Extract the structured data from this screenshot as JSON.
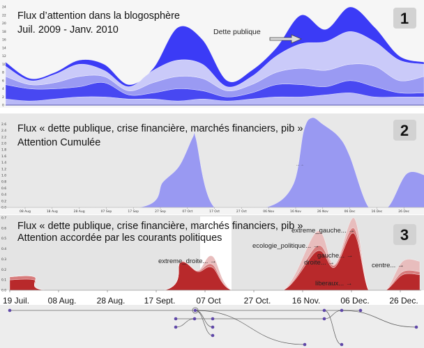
{
  "chart_data": [
    {
      "type": "area",
      "variant": "streamgraph",
      "title": "Flux d’attention dans la blogosphère",
      "subtitle": "Juil. 2009 - Janv. 2010",
      "badge": "1",
      "annotation": "Dette publique",
      "ylim": [
        0,
        24
      ],
      "yticks": [
        "0",
        "2",
        "4",
        "6",
        "8",
        "10",
        "12",
        "14",
        "16",
        "18",
        "20",
        "22",
        "24"
      ],
      "grid": false,
      "colors": [
        "#b9b9f7",
        "#4848f2",
        "#9a9af3",
        "#cacaf9",
        "#3b3bf6"
      ],
      "series": [
        {
          "values": [
            1.5,
            1,
            1.5,
            2,
            2,
            1.5,
            1.5,
            1,
            1.5,
            1,
            1.5,
            2,
            2,
            2.5,
            3,
            2,
            2,
            2
          ]
        },
        {
          "values": [
            3.5,
            3,
            2.5,
            2.5,
            3.5,
            1,
            1.5,
            3,
            2,
            1,
            1.5,
            3,
            3,
            2,
            3,
            2.5,
            1,
            1
          ]
        },
        {
          "values": [
            2,
            1,
            1.5,
            2.5,
            1.5,
            1,
            2.5,
            3,
            3,
            1.5,
            2,
            3,
            4,
            4,
            4,
            5,
            3,
            4
          ]
        },
        {
          "values": [
            2.5,
            1,
            2,
            3,
            1.5,
            1,
            3,
            4,
            3.5,
            1,
            2,
            4,
            6,
            7,
            8,
            6,
            5,
            3
          ]
        },
        {
          "values": [
            1,
            0.5,
            0.5,
            1,
            1.5,
            0.5,
            0.5,
            8,
            6,
            1.5,
            1.5,
            2,
            7,
            3,
            6,
            3.5,
            1,
            0.5
          ]
        }
      ]
    },
    {
      "type": "area",
      "title": "Flux  « dette publique, crise financière, marchés financiers, pib »",
      "subtitle": "Attention Cumulée",
      "badge": "2",
      "annotation": "... →",
      "ylim": [
        0,
        2.8
      ],
      "yticks": [
        "0.0",
        "0.2",
        "0.4",
        "0.6",
        "0.8",
        "1.0",
        "1.2",
        "1.4",
        "1.6",
        "1.8",
        "2.0",
        "2.2",
        "2.4",
        "2.6"
      ],
      "xtick_labels": [
        "08 Aug",
        "18 Aug",
        "28 Aug",
        "07 Sep",
        "17 Sep",
        "27 Sep",
        "07 Oct",
        "17 Oct",
        "27 Oct",
        "06 Nov",
        "16 Nov",
        "26 Nov",
        "06 Dec",
        "16 Dec",
        "26 Dec"
      ],
      "color": "#9999f2",
      "x": [
        "2009-07-29",
        "2009-07-31",
        "2009-09-19",
        "2009-09-28",
        "2009-10-04",
        "2009-10-09",
        "2009-10-10",
        "2009-10-17",
        "2009-11-05",
        "2009-11-15",
        "2009-11-19",
        "2009-11-22",
        "2009-11-26",
        "2009-12-02",
        "2009-12-06",
        "2009-12-13",
        "2009-12-20",
        "2009-12-27",
        "2010-01-03"
      ],
      "values": [
        0.3,
        0,
        0,
        0.8,
        1.3,
        2.2,
        2.2,
        0,
        0,
        0.7,
        2.4,
        2.8,
        2.6,
        2.2,
        1.6,
        0,
        0,
        1.05,
        1.0
      ]
    },
    {
      "type": "area",
      "title": "Flux  « dette publique, crise financière, marchés financiers, pib »",
      "subtitle": "Attention accordée par les courants politiques",
      "badge": "3",
      "ylim": [
        0,
        0.7
      ],
      "yticks": [
        "0.0",
        "0.1",
        "0.2",
        "0.3",
        "0.4",
        "0.5",
        "0.6",
        "0.7"
      ],
      "xtick_labels": [
        "19 Juil.",
        "08 Aug.",
        "28 Aug.",
        "17 Sept.",
        "07 Oct",
        "27 Oct.",
        "16 Nov.",
        "06 Dec.",
        "26 Dec."
      ],
      "x": [
        "2009-07-19",
        "2009-07-29",
        "2009-08-03",
        "2009-09-20",
        "2009-09-27",
        "2009-10-04",
        "2009-10-10",
        "2009-10-18",
        "2009-11-08",
        "2009-11-22",
        "2009-11-29",
        "2009-12-07",
        "2009-12-13",
        "2009-12-20",
        "2009-12-27",
        "2010-01-03"
      ],
      "colors": [
        "#b8292b",
        "#d77c7c",
        "#e8bdbd"
      ],
      "series": [
        {
          "values": [
            0.1,
            0.1,
            0,
            0,
            0.27,
            0.18,
            0.22,
            0,
            0,
            0.38,
            0.22,
            0.55,
            0,
            0,
            0.15,
            0.15
          ]
        },
        {
          "values": [
            0.03,
            0.03,
            0,
            0,
            0,
            0.01,
            0.03,
            0,
            0,
            0.05,
            0.02,
            0.05,
            0,
            0,
            0.03,
            0.03
          ]
        },
        {
          "values": [
            0,
            0,
            0,
            0,
            0.01,
            0,
            0.08,
            0,
            0,
            0.14,
            0.01,
            0.1,
            0,
            0,
            0.1,
            0.1
          ]
        }
      ],
      "labels": {
        "extreme_droite": "extreme_droite... →",
        "extreme_gauche": "extreme_gauche... →",
        "ecologie_politique": "ecologie_politique... →",
        "gauche": "gauche... →",
        "droite": "droite... →",
        "liberaux": "liberaux... →",
        "centre": "centre... →"
      }
    }
  ]
}
